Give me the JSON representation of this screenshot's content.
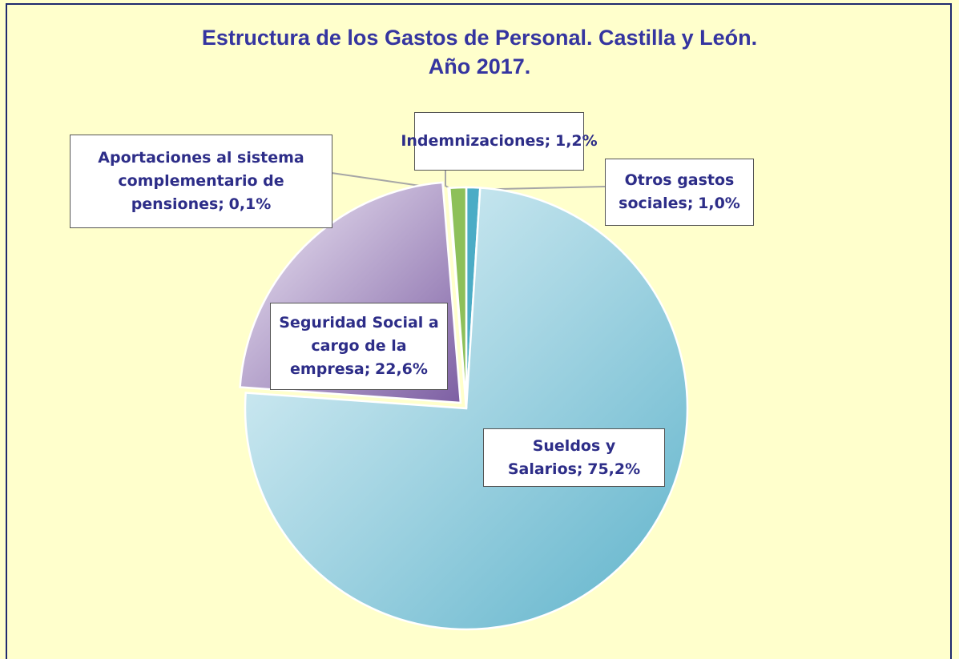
{
  "chart_data": {
    "type": "pie",
    "title": "Estructura de los Gastos de Personal. Castilla y León.",
    "subtitle": "Año  2017.",
    "categories": [
      "Otros gastos sociales;",
      "Sueldos y Salarios;",
      "Seguridad Social a cargo de la empresa;",
      "Aportaciones al sistema complementario de pensiones;",
      "Indemnizaciones;"
    ],
    "values": [
      1.0,
      75.2,
      22.6,
      0.1,
      1.2
    ],
    "value_labels": [
      "1,0%",
      "75,2%",
      "22,6%",
      "0,1%",
      "1,2%"
    ],
    "colors": [
      "#4bacc6",
      "#7ec5d8",
      "#8e73b0",
      "#c0504d",
      "#8dc05a"
    ]
  }
}
